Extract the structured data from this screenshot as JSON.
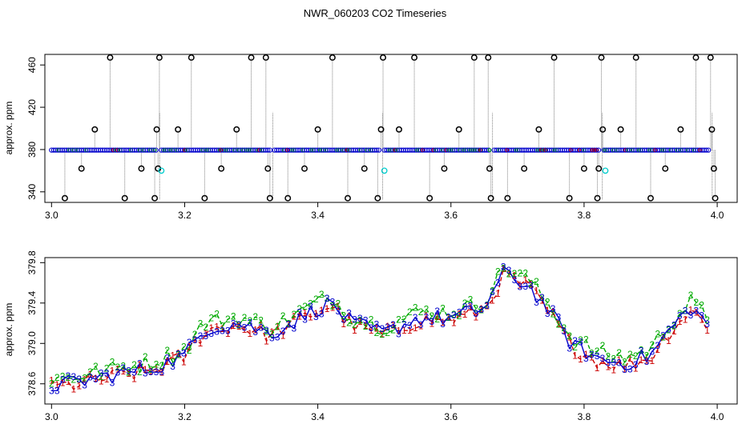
{
  "title": "NWR_060203  CO2 Timeseries",
  "colors": {
    "black": "#000000",
    "blue": "#0000cc",
    "green": "#00aa00",
    "red": "#cc0000",
    "cyan": "#00cccc",
    "gray": "#808080"
  },
  "chart_data": [
    {
      "type": "scatter",
      "title": "",
      "xlabel": "",
      "ylabel": "approx. ppm",
      "xlim": [
        2.99,
        4.03
      ],
      "ylim": [
        330,
        470
      ],
      "xticks": [
        3.0,
        3.2,
        3.4,
        3.6,
        3.8,
        4.0
      ],
      "xtick_labels": [
        "3.0",
        "3.2",
        "3.4",
        "3.6",
        "3.8",
        "4.0"
      ],
      "yticks": [
        340,
        380,
        420,
        460
      ],
      "ytick_labels": [
        "340",
        "380",
        "420",
        "460"
      ],
      "grid": false,
      "baseline_segments": [
        [
          3.0,
          3.16
        ],
        [
          3.165,
          3.33
        ],
        [
          3.335,
          3.495
        ],
        [
          3.5,
          3.66
        ],
        [
          3.665,
          3.825
        ],
        [
          3.83,
          3.99
        ]
      ],
      "baseline_value": 379.5,
      "outliers": [
        {
          "x": 3.02,
          "y": 334
        },
        {
          "x": 3.045,
          "y": 362
        },
        {
          "x": 3.065,
          "y": 399
        },
        {
          "x": 3.088,
          "y": 467
        },
        {
          "x": 3.11,
          "y": 334
        },
        {
          "x": 3.135,
          "y": 362
        },
        {
          "x": 3.155,
          "y": 334
        },
        {
          "x": 3.158,
          "y": 399
        },
        {
          "x": 3.16,
          "y": 362
        },
        {
          "x": 3.162,
          "y": 467
        },
        {
          "x": 3.19,
          "y": 399
        },
        {
          "x": 3.21,
          "y": 467
        },
        {
          "x": 3.23,
          "y": 334
        },
        {
          "x": 3.255,
          "y": 362
        },
        {
          "x": 3.278,
          "y": 399
        },
        {
          "x": 3.3,
          "y": 467
        },
        {
          "x": 3.322,
          "y": 467
        },
        {
          "x": 3.325,
          "y": 362
        },
        {
          "x": 3.328,
          "y": 334
        },
        {
          "x": 3.355,
          "y": 334
        },
        {
          "x": 3.38,
          "y": 362
        },
        {
          "x": 3.4,
          "y": 399
        },
        {
          "x": 3.422,
          "y": 467
        },
        {
          "x": 3.445,
          "y": 334
        },
        {
          "x": 3.47,
          "y": 362
        },
        {
          "x": 3.49,
          "y": 334
        },
        {
          "x": 3.495,
          "y": 399
        },
        {
          "x": 3.498,
          "y": 467
        },
        {
          "x": 3.522,
          "y": 399
        },
        {
          "x": 3.545,
          "y": 467
        },
        {
          "x": 3.568,
          "y": 334
        },
        {
          "x": 3.59,
          "y": 362
        },
        {
          "x": 3.612,
          "y": 399
        },
        {
          "x": 3.635,
          "y": 467
        },
        {
          "x": 3.656,
          "y": 467
        },
        {
          "x": 3.658,
          "y": 362
        },
        {
          "x": 3.66,
          "y": 334
        },
        {
          "x": 3.685,
          "y": 334
        },
        {
          "x": 3.71,
          "y": 362
        },
        {
          "x": 3.732,
          "y": 399
        },
        {
          "x": 3.755,
          "y": 467
        },
        {
          "x": 3.778,
          "y": 334
        },
        {
          "x": 3.8,
          "y": 362
        },
        {
          "x": 3.82,
          "y": 334
        },
        {
          "x": 3.822,
          "y": 362
        },
        {
          "x": 3.826,
          "y": 467
        },
        {
          "x": 3.828,
          "y": 399
        },
        {
          "x": 3.855,
          "y": 399
        },
        {
          "x": 3.878,
          "y": 467
        },
        {
          "x": 3.9,
          "y": 334
        },
        {
          "x": 3.922,
          "y": 362
        },
        {
          "x": 3.945,
          "y": 399
        },
        {
          "x": 3.968,
          "y": 467
        },
        {
          "x": 3.99,
          "y": 467
        },
        {
          "x": 3.992,
          "y": 399
        },
        {
          "x": 3.995,
          "y": 362
        },
        {
          "x": 3.997,
          "y": 334
        }
      ],
      "cyan_points": [
        {
          "x": 3.165,
          "y": 360
        },
        {
          "x": 3.5,
          "y": 360
        },
        {
          "x": 3.832,
          "y": 360
        }
      ]
    },
    {
      "type": "line",
      "title": "",
      "xlabel": "",
      "ylabel": "approx. ppm",
      "xlim": [
        2.99,
        4.03
      ],
      "ylim": [
        378.4,
        379.85
      ],
      "xticks": [
        3.0,
        3.2,
        3.4,
        3.6,
        3.8,
        4.0
      ],
      "xtick_labels": [
        "3.0",
        "3.2",
        "3.4",
        "3.6",
        "3.8",
        "4.0"
      ],
      "yticks": [
        378.6,
        379.0,
        379.4,
        379.8
      ],
      "ytick_labels": [
        "378.6",
        "379.0",
        "379.4",
        "379.8"
      ],
      "grid": false,
      "trend_knots": [
        [
          3.0,
          378.58
        ],
        [
          3.05,
          378.63
        ],
        [
          3.1,
          378.7
        ],
        [
          3.15,
          378.75
        ],
        [
          3.2,
          378.88
        ],
        [
          3.23,
          379.15
        ],
        [
          3.28,
          379.2
        ],
        [
          3.33,
          379.1
        ],
        [
          3.36,
          379.2
        ],
        [
          3.4,
          379.35
        ],
        [
          3.42,
          379.4
        ],
        [
          3.45,
          379.2
        ],
        [
          3.5,
          379.1
        ],
        [
          3.55,
          379.25
        ],
        [
          3.6,
          379.25
        ],
        [
          3.65,
          379.35
        ],
        [
          3.68,
          379.7
        ],
        [
          3.72,
          379.55
        ],
        [
          3.75,
          379.3
        ],
        [
          3.78,
          379.0
        ],
        [
          3.82,
          378.85
        ],
        [
          3.86,
          378.8
        ],
        [
          3.9,
          378.88
        ],
        [
          3.93,
          379.15
        ],
        [
          3.96,
          379.35
        ],
        [
          3.985,
          379.2
        ]
      ],
      "x_start": 3.0,
      "x_end": 3.985,
      "n_points": 120,
      "series": [
        {
          "label": "1",
          "color": "#cc0000",
          "offset": -0.02
        },
        {
          "label": "2",
          "color": "#00aa00",
          "offset": 0.06
        },
        {
          "label": "3",
          "color": "#0000cc",
          "offset": 0.0
        }
      ]
    }
  ]
}
